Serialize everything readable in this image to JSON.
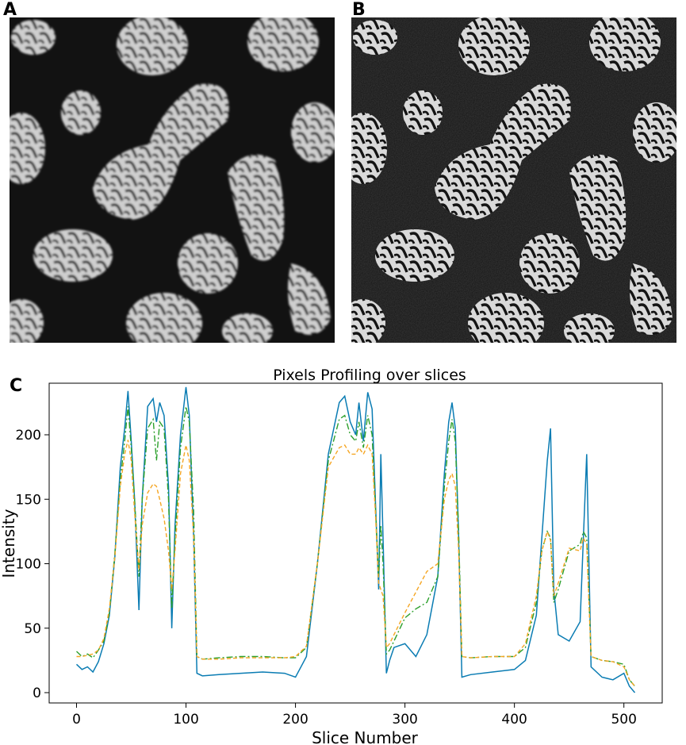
{
  "panels": {
    "a_label": "A",
    "b_label": "B",
    "c_label": "C"
  },
  "colors": {
    "blue": "#1f77b4",
    "teal": "#0a7cb3",
    "orange": "#f5a623",
    "green": "#2ca02c",
    "bg_dark": "#121212",
    "blob": "#d6d6d6"
  },
  "chart_data": {
    "type": "line",
    "title": "Pixels Profiling over slices",
    "xlabel": "Slice Number",
    "ylabel": "Intensity",
    "xlim": [
      -25,
      535
    ],
    "ylim": [
      -8,
      240
    ],
    "xticks": [
      0,
      100,
      200,
      300,
      400,
      500
    ],
    "yticks": [
      0,
      50,
      100,
      150,
      200
    ],
    "grid": false,
    "series": [
      {
        "style": "solid",
        "color": "#0a7cb3",
        "x": [
          0,
          5,
          10,
          15,
          20,
          25,
          30,
          35,
          40,
          44,
          47,
          50,
          53,
          57,
          60,
          65,
          70,
          73,
          76,
          80,
          84,
          87,
          90,
          95,
          100,
          103,
          107,
          110,
          115,
          130,
          150,
          170,
          190,
          200,
          210,
          220,
          230,
          240,
          245,
          250,
          255,
          258,
          262,
          266,
          270,
          273,
          276,
          278,
          280,
          283,
          286,
          290,
          300,
          310,
          320,
          330,
          336,
          340,
          343,
          346,
          349,
          352,
          360,
          380,
          400,
          410,
          420,
          425,
          430,
          433,
          436,
          440,
          450,
          460,
          463,
          466,
          470,
          480,
          490,
          500,
          505,
          510
        ],
        "y": [
          22,
          18,
          20,
          16,
          24,
          38,
          60,
          105,
          175,
          205,
          234,
          195,
          150,
          64,
          150,
          222,
          228,
          210,
          225,
          215,
          160,
          50,
          130,
          200,
          237,
          215,
          120,
          15,
          13,
          14,
          15,
          16,
          15,
          12,
          28,
          100,
          185,
          225,
          230,
          210,
          200,
          225,
          195,
          233,
          220,
          150,
          80,
          185,
          120,
          15,
          25,
          35,
          38,
          28,
          45,
          90,
          170,
          210,
          225,
          205,
          120,
          12,
          14,
          16,
          18,
          25,
          60,
          120,
          180,
          205,
          80,
          45,
          40,
          55,
          120,
          185,
          20,
          12,
          10,
          15,
          5,
          0
        ]
      },
      {
        "style": "dashdot",
        "color": "#2ca02c",
        "x": [
          0,
          5,
          10,
          15,
          20,
          25,
          30,
          35,
          40,
          44,
          47,
          50,
          53,
          57,
          60,
          65,
          70,
          73,
          76,
          80,
          84,
          87,
          90,
          95,
          100,
          103,
          107,
          110,
          115,
          130,
          150,
          170,
          190,
          200,
          210,
          220,
          230,
          240,
          245,
          250,
          255,
          258,
          262,
          266,
          270,
          273,
          276,
          278,
          280,
          283,
          286,
          290,
          300,
          310,
          320,
          330,
          336,
          340,
          343,
          346,
          349,
          352,
          360,
          380,
          400,
          410,
          420,
          425,
          430,
          433,
          436,
          440,
          450,
          460,
          463,
          466,
          470,
          480,
          490,
          500,
          505,
          510
        ],
        "y": [
          32,
          28,
          30,
          27,
          33,
          40,
          62,
          108,
          165,
          195,
          222,
          190,
          150,
          90,
          150,
          205,
          212,
          180,
          210,
          205,
          150,
          65,
          120,
          190,
          222,
          210,
          140,
          28,
          26,
          27,
          28,
          28,
          27,
          27,
          35,
          100,
          180,
          212,
          215,
          200,
          195,
          210,
          190,
          215,
          200,
          145,
          90,
          130,
          100,
          30,
          33,
          40,
          58,
          65,
          70,
          90,
          160,
          195,
          212,
          195,
          125,
          28,
          27,
          28,
          28,
          35,
          70,
          110,
          125,
          120,
          70,
          80,
          110,
          115,
          125,
          120,
          28,
          25,
          24,
          22,
          10,
          5
        ]
      },
      {
        "style": "dashed",
        "color": "#f5a623",
        "x": [
          0,
          5,
          10,
          15,
          20,
          25,
          30,
          35,
          40,
          44,
          47,
          50,
          53,
          57,
          60,
          65,
          70,
          73,
          76,
          80,
          84,
          87,
          90,
          95,
          100,
          103,
          107,
          110,
          115,
          130,
          150,
          170,
          190,
          200,
          210,
          220,
          230,
          240,
          245,
          250,
          255,
          258,
          262,
          266,
          270,
          273,
          276,
          278,
          280,
          283,
          286,
          290,
          300,
          310,
          320,
          330,
          336,
          340,
          343,
          346,
          349,
          352,
          360,
          380,
          400,
          410,
          420,
          425,
          430,
          433,
          436,
          440,
          450,
          460,
          463,
          466,
          470,
          480,
          490,
          500,
          505,
          510
        ],
        "y": [
          28,
          28,
          29,
          30,
          33,
          42,
          65,
          105,
          160,
          185,
          196,
          180,
          140,
          95,
          130,
          155,
          162,
          160,
          150,
          135,
          110,
          80,
          110,
          170,
          192,
          180,
          120,
          28,
          26,
          26,
          27,
          27,
          27,
          28,
          36,
          100,
          175,
          190,
          192,
          185,
          185,
          190,
          185,
          192,
          185,
          140,
          85,
          80,
          75,
          35,
          38,
          45,
          62,
          78,
          94,
          100,
          150,
          165,
          170,
          160,
          110,
          28,
          27,
          28,
          28,
          38,
          75,
          110,
          125,
          118,
          75,
          85,
          112,
          110,
          120,
          115,
          28,
          25,
          24,
          20,
          10,
          5
        ]
      }
    ]
  }
}
